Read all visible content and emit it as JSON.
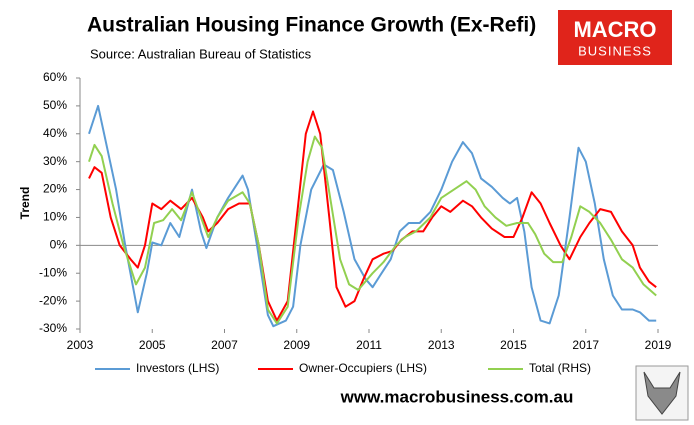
{
  "chart_data": {
    "type": "line",
    "title": "Australian Housing Finance Growth (Ex-Refi)",
    "subtitle": "Source: Australian Bureau of Statistics",
    "ylabel": "Trend",
    "logo": [
      "MACRO",
      "BUSINESS"
    ],
    "footer": "www.macrobusiness.com.au",
    "xlim": [
      2003,
      2019
    ],
    "xticks": [
      2003,
      2005,
      2007,
      2009,
      2011,
      2013,
      2015,
      2017,
      2019
    ],
    "ylim": [
      -30,
      60
    ],
    "yticks": [
      {
        "value": -30,
        "label": "-30%"
      },
      {
        "value": -20,
        "label": "-20%"
      },
      {
        "value": -10,
        "label": "-10%"
      },
      {
        "value": 0,
        "label": "0%"
      },
      {
        "value": 10,
        "label": "10%"
      },
      {
        "value": 20,
        "label": "20%"
      },
      {
        "value": 30,
        "label": "30%"
      },
      {
        "value": 40,
        "label": "40%"
      },
      {
        "value": 50,
        "label": "50%"
      },
      {
        "value": 60,
        "label": "60%"
      }
    ],
    "grid": false,
    "legend": "bottom",
    "series": [
      {
        "name": "Investors (LHS)",
        "color": "#5b9bd5",
        "x": [
          2003.25,
          2003.5,
          2004.0,
          2004.25,
          2004.6,
          2004.85,
          2005.0,
          2005.25,
          2005.5,
          2005.75,
          2006.1,
          2006.35,
          2006.5,
          2006.8,
          2007.1,
          2007.5,
          2007.65,
          2007.9,
          2008.2,
          2008.35,
          2008.7,
          2008.9,
          2009.1,
          2009.4,
          2009.75,
          2010.0,
          2010.3,
          2010.6,
          2010.9,
          2011.1,
          2011.35,
          2011.6,
          2011.85,
          2012.1,
          2012.4,
          2012.7,
          2013.0,
          2013.3,
          2013.6,
          2013.85,
          2014.1,
          2014.4,
          2014.7,
          2014.9,
          2015.1,
          2015.3,
          2015.5,
          2015.75,
          2016.0,
          2016.25,
          2016.55,
          2016.8,
          2017.0,
          2017.25,
          2017.5,
          2017.75,
          2018.0,
          2018.3,
          2018.5,
          2018.75,
          2018.95
        ],
        "values": [
          40,
          50,
          20,
          0,
          -24,
          -10,
          1,
          0,
          8,
          3,
          20,
          5,
          -1,
          10,
          17,
          25,
          20,
          0,
          -25,
          -29,
          -27,
          -22,
          0,
          20,
          29,
          27,
          12,
          -5,
          -12,
          -15,
          -10,
          -5,
          5,
          8,
          8,
          12,
          20,
          30,
          37,
          33,
          24,
          21,
          17,
          15,
          17,
          5,
          -15,
          -27,
          -28,
          -18,
          10,
          35,
          30,
          15,
          -5,
          -18,
          -23,
          -23,
          -24,
          -27,
          -27
        ]
      },
      {
        "name": "Owner-Occupiers (LHS)",
        "color": "#ff0000",
        "x": [
          2003.25,
          2003.4,
          2003.6,
          2003.85,
          2004.1,
          2004.4,
          2004.6,
          2004.8,
          2005.0,
          2005.25,
          2005.5,
          2005.8,
          2006.1,
          2006.4,
          2006.55,
          2006.8,
          2007.1,
          2007.4,
          2007.7,
          2007.95,
          2008.2,
          2008.45,
          2008.75,
          2009.0,
          2009.25,
          2009.45,
          2009.65,
          2009.9,
          2010.1,
          2010.35,
          2010.6,
          2010.85,
          2011.1,
          2011.4,
          2011.65,
          2011.9,
          2012.2,
          2012.5,
          2012.75,
          2013.0,
          2013.25,
          2013.6,
          2013.85,
          2014.1,
          2014.4,
          2014.75,
          2015.0,
          2015.25,
          2015.5,
          2015.75,
          2016.0,
          2016.3,
          2016.55,
          2016.85,
          2017.1,
          2017.4,
          2017.7,
          2018.0,
          2018.3,
          2018.5,
          2018.75,
          2018.95
        ],
        "values": [
          24,
          28,
          26,
          10,
          0,
          -5,
          -8,
          0,
          15,
          13,
          16,
          13,
          17,
          10,
          5,
          8,
          13,
          15,
          15,
          0,
          -20,
          -27,
          -20,
          10,
          40,
          48,
          40,
          10,
          -15,
          -22,
          -20,
          -12,
          -5,
          -3,
          -2,
          2,
          5,
          5,
          10,
          14,
          12,
          16,
          14,
          10,
          6,
          3,
          3,
          10,
          19,
          15,
          8,
          0,
          -5,
          3,
          8,
          13,
          12,
          5,
          0,
          -8,
          -13,
          -15
        ]
      },
      {
        "name": "Total (RHS)",
        "color": "#92d050",
        "x": [
          2003.25,
          2003.4,
          2003.6,
          2003.9,
          2004.2,
          2004.55,
          2004.8,
          2005.05,
          2005.3,
          2005.55,
          2005.8,
          2006.1,
          2006.35,
          2006.55,
          2006.8,
          2007.1,
          2007.5,
          2007.7,
          2007.95,
          2008.2,
          2008.45,
          2008.75,
          2009.05,
          2009.3,
          2009.5,
          2009.7,
          2009.95,
          2010.2,
          2010.45,
          2010.7,
          2011.1,
          2011.4,
          2011.75,
          2012.0,
          2012.3,
          2012.7,
          2013.0,
          2013.35,
          2013.7,
          2013.95,
          2014.2,
          2014.5,
          2014.8,
          2015.1,
          2015.4,
          2015.6,
          2015.85,
          2016.1,
          2016.35,
          2016.6,
          2016.85,
          2017.1,
          2017.4,
          2017.7,
          2018.0,
          2018.3,
          2018.6,
          2018.95
        ],
        "values": [
          30,
          36,
          32,
          15,
          0,
          -14,
          -8,
          8,
          9,
          13,
          9,
          19,
          10,
          3,
          10,
          16,
          19,
          15,
          0,
          -23,
          -28,
          -22,
          10,
          30,
          39,
          35,
          15,
          -5,
          -14,
          -16,
          -10,
          -6,
          0,
          3,
          5,
          10,
          17,
          20,
          23,
          20,
          14,
          10,
          7,
          8,
          8,
          4,
          -3,
          -6,
          -6,
          3,
          14,
          12,
          8,
          2,
          -5,
          -8,
          -14,
          -18
        ]
      }
    ]
  }
}
